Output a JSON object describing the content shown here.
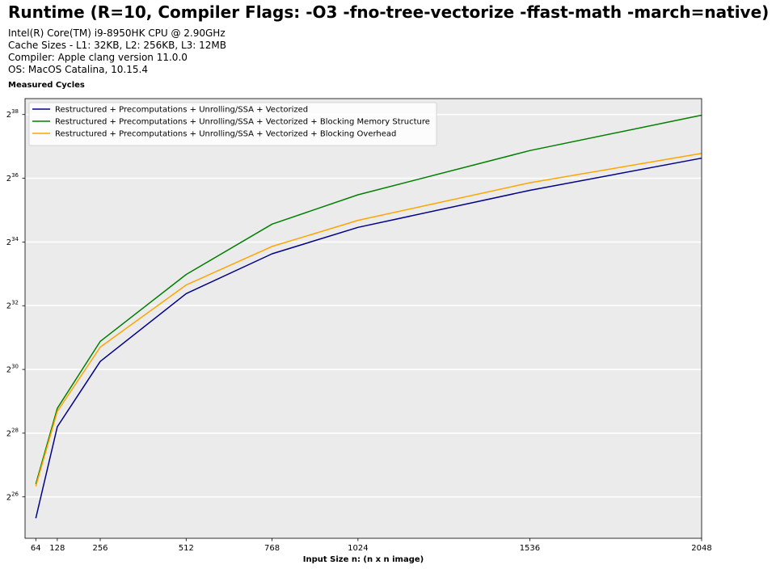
{
  "header": {
    "title": "Runtime (R=10, Compiler Flags: -O3 -fno-tree-vectorize -ffast-math -march=native)",
    "info_lines": [
      "Intel(R) Core(TM) i9-8950HK CPU @ 2.90GHz",
      "Cache Sizes - L1: 32KB, L2: 256KB, L3: 12MB",
      "Compiler: Apple clang version 11.0.0",
      "OS: MacOS Catalina, 10.15.4"
    ]
  },
  "chart_data": {
    "type": "line",
    "title": "Runtime (R=10, Compiler Flags: -O3 -fno-tree-vectorize -ffast-math -march=native)",
    "ylabel": "Measured Cycles",
    "xlabel": "Input Size n: (n x n image)",
    "y_scale": "log2",
    "ylim_exponent": [
      24.7,
      38.5
    ],
    "y_tick_exponents": [
      26,
      28,
      30,
      32,
      34,
      36,
      38
    ],
    "xlim": [
      32,
      2048
    ],
    "x_ticks": [
      64,
      128,
      256,
      512,
      768,
      1024,
      1536,
      2048
    ],
    "grid": true,
    "legend_position": "top-left",
    "background": "#ebebeb",
    "x": [
      64,
      128,
      256,
      512,
      768,
      1024,
      1536,
      2048
    ],
    "series": [
      {
        "name": "Restructured + Precomputations +  Unrolling/SSA + Vectorized",
        "color": "#00008b",
        "y_exponents": [
          25.33,
          28.2,
          30.25,
          32.38,
          33.63,
          34.46,
          35.62,
          36.63
        ]
      },
      {
        "name": "Restructured + Precomputations +  Unrolling/SSA + Vectorized + Blocking Memory Structure",
        "color": "#008000",
        "y_exponents": [
          26.4,
          28.78,
          30.88,
          32.98,
          34.56,
          35.48,
          36.87,
          37.98
        ]
      },
      {
        "name": "Restructured + Precomputations +  Unrolling/SSA + Vectorized + Blocking Overhead",
        "color": "#ffa500",
        "y_exponents": [
          26.33,
          28.68,
          30.7,
          32.65,
          33.86,
          34.68,
          35.86,
          36.78
        ]
      }
    ]
  }
}
